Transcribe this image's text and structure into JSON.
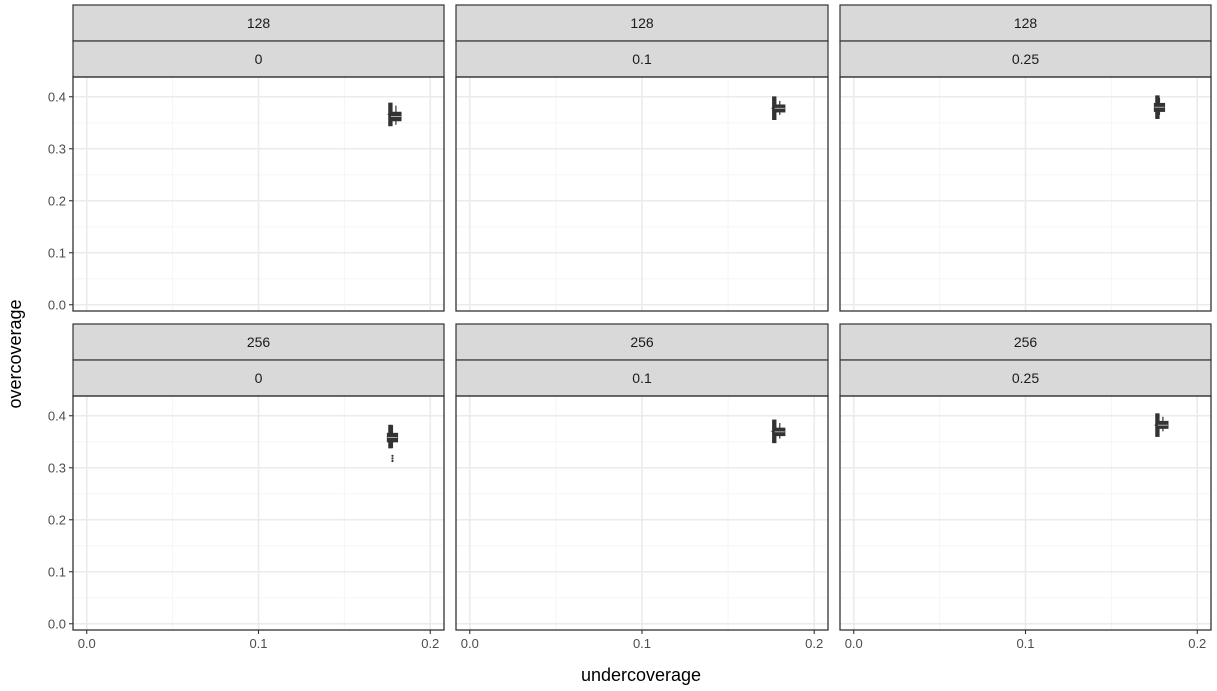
{
  "chart_data": {
    "type": "boxplot",
    "xlabel": "undercoverage",
    "ylabel": "overcoverage",
    "xlim": [
      -0.008,
      0.208
    ],
    "ylim": [
      -0.012,
      0.438
    ],
    "x_ticks": [
      0.0,
      0.1,
      0.2
    ],
    "x_tick_labels": [
      "0.0",
      "0.1",
      "0.2"
    ],
    "y_ticks": [
      0.0,
      0.1,
      0.2,
      0.3,
      0.4
    ],
    "y_tick_labels": [
      "0.0",
      "0.1",
      "0.2",
      "0.3",
      "0.4"
    ],
    "grid": true,
    "colors": {
      "panel_border": "#333333",
      "strip_fill": "#d9d9d9",
      "grid_major": "#ebebeb",
      "grid_minor": "#f5f5f5",
      "marks": "#333333"
    },
    "panels": [
      {
        "row": 0,
        "col": 0,
        "strip_top": "128",
        "strip_bottom": "0",
        "x_box": {
          "min": 0.1752,
          "q1": 0.176,
          "median": 0.1768,
          "q3": 0.1776,
          "max": 0.1784,
          "y": 0.366
        },
        "y_box": {
          "min": 0.346,
          "q1": 0.354,
          "median": 0.362,
          "q3": 0.37,
          "max": 0.383,
          "x": 0.18
        }
      },
      {
        "row": 0,
        "col": 1,
        "strip_top": "128",
        "strip_bottom": "0.1",
        "x_box": {
          "min": 0.1752,
          "q1": 0.176,
          "median": 0.1768,
          "q3": 0.1776,
          "max": 0.1784,
          "y": 0.378
        },
        "y_box": {
          "min": 0.365,
          "q1": 0.371,
          "median": 0.378,
          "q3": 0.384,
          "max": 0.392,
          "x": 0.18
        }
      },
      {
        "row": 0,
        "col": 2,
        "strip_top": "128",
        "strip_bottom": "0.25",
        "x_box": {
          "min": 0.1752,
          "q1": 0.176,
          "median": 0.1768,
          "q3": 0.1776,
          "max": 0.1784,
          "y": 0.38
        },
        "y_box": {
          "min": 0.365,
          "q1": 0.372,
          "median": 0.38,
          "q3": 0.387,
          "max": 0.398,
          "x": 0.178
        }
      },
      {
        "row": 1,
        "col": 0,
        "strip_top": "256",
        "strip_bottom": "0",
        "x_box": {
          "min": 0.1752,
          "q1": 0.176,
          "median": 0.1768,
          "q3": 0.1776,
          "max": 0.1784,
          "y": 0.36
        },
        "y_box": {
          "min": 0.338,
          "q1": 0.35,
          "median": 0.358,
          "q3": 0.366,
          "max": 0.382,
          "x": 0.178
        },
        "outliers": [
          {
            "x": 0.178,
            "y": 0.323
          },
          {
            "x": 0.178,
            "y": 0.318
          },
          {
            "x": 0.178,
            "y": 0.313
          }
        ]
      },
      {
        "row": 1,
        "col": 1,
        "strip_top": "256",
        "strip_bottom": "0.1",
        "x_box": {
          "min": 0.1752,
          "q1": 0.176,
          "median": 0.1768,
          "q3": 0.1776,
          "max": 0.1784,
          "y": 0.37
        },
        "y_box": {
          "min": 0.356,
          "q1": 0.362,
          "median": 0.369,
          "q3": 0.376,
          "max": 0.386,
          "x": 0.18
        }
      },
      {
        "row": 1,
        "col": 2,
        "strip_top": "256",
        "strip_bottom": "0.25",
        "x_box": {
          "min": 0.1752,
          "q1": 0.176,
          "median": 0.1768,
          "q3": 0.1776,
          "max": 0.1784,
          "y": 0.382
        },
        "y_box": {
          "min": 0.37,
          "q1": 0.376,
          "median": 0.382,
          "q3": 0.389,
          "max": 0.398,
          "x": 0.18
        }
      }
    ]
  }
}
